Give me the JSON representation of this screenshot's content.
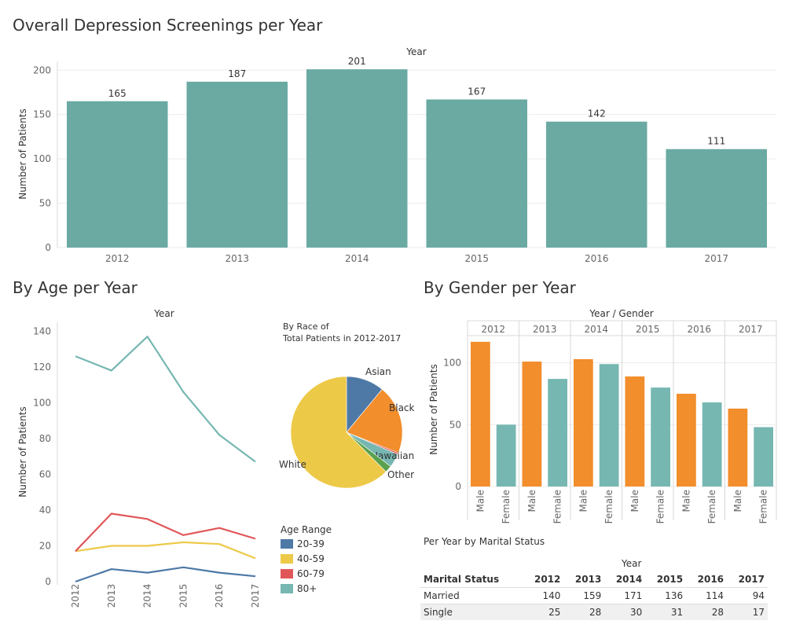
{
  "titles": {
    "top": "Overall Depression Screenings per Year",
    "age": "By Age per Year",
    "gender": "By Gender per Year"
  },
  "colors": {
    "teal": "#6aaaa3",
    "line_teal": "#76b7b2",
    "orange": "#f28e2b",
    "blue": "#4e79a7",
    "yellow": "#edc948",
    "red": "#e15759",
    "green": "#59a14f",
    "grid": "#ececec",
    "axis_text": "#666666"
  },
  "chart_data": [
    {
      "id": "screenings",
      "type": "bar",
      "title": "Overall Depression Screenings per Year",
      "top_label": "Year",
      "ylabel": "Number of Patients",
      "categories": [
        "2012",
        "2013",
        "2014",
        "2015",
        "2016",
        "2017"
      ],
      "values": [
        165,
        187,
        201,
        167,
        142,
        111
      ],
      "yticks": [
        0,
        50,
        100,
        150,
        200
      ],
      "ylim": [
        0,
        210
      ],
      "grid": true
    },
    {
      "id": "age",
      "type": "line",
      "title": "By Age per Year",
      "top_label": "Year",
      "ylabel": "Number of Patients",
      "x": [
        "2012",
        "2013",
        "2014",
        "2015",
        "2016",
        "2017"
      ],
      "yticks": [
        0,
        20,
        40,
        60,
        80,
        100,
        120,
        140
      ],
      "ylim": [
        0,
        145
      ],
      "legend_title": "Age Range",
      "series": [
        {
          "name": "20-39",
          "color": "#4e79a7",
          "values": [
            0,
            7,
            5,
            8,
            5,
            3
          ]
        },
        {
          "name": "40-59",
          "color": "#edc948",
          "values": [
            17,
            20,
            20,
            22,
            21,
            13
          ]
        },
        {
          "name": "60-79",
          "color": "#e15759",
          "values": [
            17,
            38,
            35,
            26,
            30,
            24
          ]
        },
        {
          "name": "80+",
          "color": "#76b7b2",
          "values": [
            126,
            118,
            137,
            106,
            82,
            67
          ]
        }
      ]
    },
    {
      "id": "race",
      "type": "pie",
      "title_lines": [
        "By Race of",
        "Total Patients in 2012-2017"
      ],
      "slices": [
        {
          "label": "Asian",
          "value": 11,
          "color": "#4e79a7"
        },
        {
          "label": "Black",
          "value": 20,
          "color": "#f28e2b"
        },
        {
          "label": "",
          "value": 0.5,
          "color": "#e15759"
        },
        {
          "label": "Hawaiian",
          "value": 4,
          "color": "#76b7b2"
        },
        {
          "label": "Other",
          "value": 2,
          "color": "#59a14f"
        },
        {
          "label": "White",
          "value": 62.5,
          "color": "#edc948"
        }
      ]
    },
    {
      "id": "gender",
      "type": "bar",
      "title": "By Gender per Year",
      "top_label": "Year / Gender",
      "ylabel": "Number of Patients",
      "categories": [
        "2012",
        "2013",
        "2014",
        "2015",
        "2016",
        "2017"
      ],
      "genders": [
        "Male",
        "Female"
      ],
      "series": [
        {
          "name": "Male",
          "color": "#f28e2b",
          "values": [
            117,
            101,
            103,
            89,
            75,
            63
          ]
        },
        {
          "name": "Female",
          "color": "#76b7b2",
          "values": [
            50,
            87,
            99,
            80,
            68,
            48
          ]
        }
      ],
      "yticks": [
        0,
        50,
        100
      ],
      "ylim": [
        0,
        122
      ]
    },
    {
      "id": "marital",
      "type": "table",
      "title": "Per Year by Marital Status",
      "header_label": "Year",
      "columns": [
        "Marital Status",
        "2012",
        "2013",
        "2014",
        "2015",
        "2016",
        "2017"
      ],
      "rows": [
        [
          "Married",
          "140",
          "159",
          "171",
          "136",
          "114",
          "94"
        ],
        [
          "Single",
          "25",
          "28",
          "30",
          "31",
          "28",
          "17"
        ]
      ]
    }
  ]
}
